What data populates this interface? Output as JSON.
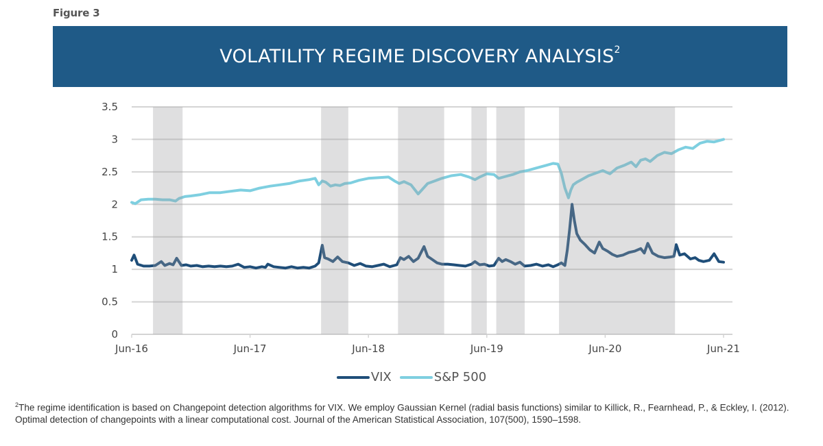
{
  "figure_label": "Figure 3",
  "banner": {
    "title": "VOLATILITY REGIME DISCOVERY ANALYSIS",
    "superscript": "2"
  },
  "colors": {
    "banner": "#1f5a87",
    "vix": "#1f4e79",
    "sp500": "#7ecfe0",
    "regime_shade": "#d9d9db",
    "gridline": "#d4d4d4"
  },
  "legend": [
    {
      "label": "VIX",
      "color": "#1f4e79"
    },
    {
      "label": "S&P 500",
      "color": "#7ecfe0"
    }
  ],
  "footnote": {
    "marker": "2",
    "text": "The regime identification is based on Changepoint detection algorithms for VIX. We employ Gaussian Kernel (radial basis functions) similar to Killick, R., Fearnhead, P., & Eckley, I. (2012). Optimal detection of changepoints with a linear computational cost. Journal of the American Statistical Association, 107(500), 1590–1598."
  },
  "chart_data": {
    "type": "line",
    "title": "VOLATILITY REGIME DISCOVERY ANALYSIS",
    "xlabel": "",
    "ylabel": "",
    "x_range_years": [
      2016.5,
      2021.5
    ],
    "ylim": [
      0,
      3.5
    ],
    "y_ticks": [
      0,
      0.5,
      1,
      1.5,
      2,
      2.5,
      3,
      3.5
    ],
    "y_tick_labels": [
      "0",
      "0.5",
      "1",
      "1.5",
      "2",
      "2.5",
      "3",
      "3.5"
    ],
    "x_ticks": [
      2016.5,
      2017.5,
      2018.5,
      2019.5,
      2020.5,
      2021.5
    ],
    "x_tick_labels": [
      "Jun-16",
      "Jun-17",
      "Jun-18",
      "Jun-19",
      "Jun-20",
      "Jun-21"
    ],
    "grid": "horizontal",
    "legend_position": "bottom-center",
    "regimes": [
      {
        "start": 2016.68,
        "end": 2016.93
      },
      {
        "start": 2018.1,
        "end": 2018.33
      },
      {
        "start": 2018.75,
        "end": 2019.14
      },
      {
        "start": 2019.37,
        "end": 2019.5
      },
      {
        "start": 2019.58,
        "end": 2019.82
      },
      {
        "start": 2020.11,
        "end": 2021.09
      }
    ],
    "series": [
      {
        "name": "VIX",
        "x": [
          2016.5,
          2016.52,
          2016.55,
          2016.6,
          2016.65,
          2016.7,
          2016.75,
          2016.78,
          2016.82,
          2016.85,
          2016.88,
          2016.92,
          2016.96,
          2017.0,
          2017.05,
          2017.1,
          2017.15,
          2017.2,
          2017.25,
          2017.3,
          2017.35,
          2017.4,
          2017.45,
          2017.5,
          2017.55,
          2017.6,
          2017.63,
          2017.65,
          2017.7,
          2017.75,
          2017.8,
          2017.85,
          2017.9,
          2017.95,
          2018.0,
          2018.05,
          2018.08,
          2018.11,
          2018.13,
          2018.16,
          2018.2,
          2018.24,
          2018.28,
          2018.33,
          2018.38,
          2018.43,
          2018.48,
          2018.53,
          2018.58,
          2018.63,
          2018.68,
          2018.74,
          2018.77,
          2018.8,
          2018.84,
          2018.88,
          2018.92,
          2018.97,
          2019.0,
          2019.04,
          2019.08,
          2019.12,
          2019.17,
          2019.22,
          2019.27,
          2019.32,
          2019.37,
          2019.4,
          2019.44,
          2019.48,
          2019.52,
          2019.56,
          2019.6,
          2019.63,
          2019.66,
          2019.7,
          2019.74,
          2019.78,
          2019.82,
          2019.87,
          2019.92,
          2019.97,
          2020.02,
          2020.06,
          2020.1,
          2020.13,
          2020.16,
          2020.18,
          2020.2,
          2020.22,
          2020.24,
          2020.26,
          2020.29,
          2020.33,
          2020.37,
          2020.41,
          2020.45,
          2020.48,
          2020.52,
          2020.56,
          2020.6,
          2020.65,
          2020.7,
          2020.75,
          2020.8,
          2020.83,
          2020.86,
          2020.9,
          2020.95,
          2021.0,
          2021.05,
          2021.08,
          2021.1,
          2021.13,
          2021.17,
          2021.22,
          2021.26,
          2021.29,
          2021.33,
          2021.38,
          2021.42,
          2021.46,
          2021.5
        ],
        "values": [
          1.14,
          1.22,
          1.08,
          1.05,
          1.05,
          1.06,
          1.12,
          1.06,
          1.09,
          1.07,
          1.17,
          1.06,
          1.07,
          1.05,
          1.06,
          1.04,
          1.05,
          1.04,
          1.05,
          1.04,
          1.05,
          1.08,
          1.03,
          1.04,
          1.02,
          1.04,
          1.03,
          1.08,
          1.04,
          1.03,
          1.02,
          1.04,
          1.02,
          1.03,
          1.02,
          1.05,
          1.1,
          1.37,
          1.18,
          1.16,
          1.12,
          1.19,
          1.12,
          1.1,
          1.06,
          1.09,
          1.05,
          1.04,
          1.06,
          1.08,
          1.04,
          1.07,
          1.18,
          1.15,
          1.2,
          1.12,
          1.17,
          1.35,
          1.2,
          1.15,
          1.1,
          1.08,
          1.08,
          1.07,
          1.06,
          1.05,
          1.08,
          1.12,
          1.07,
          1.08,
          1.05,
          1.06,
          1.17,
          1.12,
          1.15,
          1.12,
          1.08,
          1.11,
          1.05,
          1.06,
          1.08,
          1.05,
          1.07,
          1.04,
          1.07,
          1.1,
          1.06,
          1.3,
          1.62,
          2.0,
          1.75,
          1.55,
          1.45,
          1.38,
          1.3,
          1.25,
          1.42,
          1.32,
          1.28,
          1.23,
          1.2,
          1.22,
          1.26,
          1.28,
          1.32,
          1.25,
          1.4,
          1.25,
          1.2,
          1.18,
          1.19,
          1.2,
          1.38,
          1.22,
          1.24,
          1.16,
          1.18,
          1.14,
          1.12,
          1.14,
          1.24,
          1.12,
          1.11
        ]
      },
      {
        "name": "S&P 500",
        "x": [
          2016.5,
          2016.53,
          2016.58,
          2016.64,
          2016.7,
          2016.76,
          2016.82,
          2016.87,
          2016.9,
          2016.95,
          2017.0,
          2017.08,
          2017.16,
          2017.25,
          2017.33,
          2017.42,
          2017.5,
          2017.58,
          2017.67,
          2017.75,
          2017.83,
          2017.92,
          2018.0,
          2018.05,
          2018.08,
          2018.11,
          2018.14,
          2018.18,
          2018.22,
          2018.26,
          2018.3,
          2018.35,
          2018.42,
          2018.5,
          2018.58,
          2018.67,
          2018.72,
          2018.76,
          2018.8,
          2018.86,
          2018.92,
          2018.97,
          2019.0,
          2019.06,
          2019.12,
          2019.2,
          2019.28,
          2019.35,
          2019.4,
          2019.44,
          2019.5,
          2019.56,
          2019.6,
          2019.66,
          2019.72,
          2019.78,
          2019.84,
          2019.92,
          2020.0,
          2020.06,
          2020.1,
          2020.13,
          2020.16,
          2020.19,
          2020.21,
          2020.23,
          2020.26,
          2020.3,
          2020.36,
          2020.42,
          2020.48,
          2020.54,
          2020.6,
          2020.66,
          2020.72,
          2020.76,
          2020.8,
          2020.84,
          2020.88,
          2020.94,
          2021.0,
          2021.06,
          2021.12,
          2021.18,
          2021.24,
          2021.3,
          2021.36,
          2021.42,
          2021.5
        ],
        "values": [
          2.03,
          2.01,
          2.07,
          2.08,
          2.08,
          2.07,
          2.07,
          2.05,
          2.09,
          2.12,
          2.13,
          2.15,
          2.18,
          2.18,
          2.2,
          2.22,
          2.21,
          2.25,
          2.28,
          2.3,
          2.32,
          2.36,
          2.38,
          2.4,
          2.3,
          2.36,
          2.34,
          2.28,
          2.3,
          2.29,
          2.32,
          2.33,
          2.37,
          2.4,
          2.41,
          2.42,
          2.36,
          2.32,
          2.35,
          2.3,
          2.16,
          2.26,
          2.32,
          2.36,
          2.4,
          2.44,
          2.46,
          2.42,
          2.38,
          2.42,
          2.47,
          2.46,
          2.4,
          2.43,
          2.46,
          2.5,
          2.52,
          2.56,
          2.6,
          2.63,
          2.62,
          2.48,
          2.25,
          2.1,
          2.22,
          2.3,
          2.34,
          2.38,
          2.44,
          2.48,
          2.52,
          2.47,
          2.56,
          2.6,
          2.65,
          2.58,
          2.68,
          2.7,
          2.66,
          2.75,
          2.8,
          2.78,
          2.84,
          2.88,
          2.86,
          2.94,
          2.97,
          2.96,
          3.0
        ]
      }
    ]
  }
}
